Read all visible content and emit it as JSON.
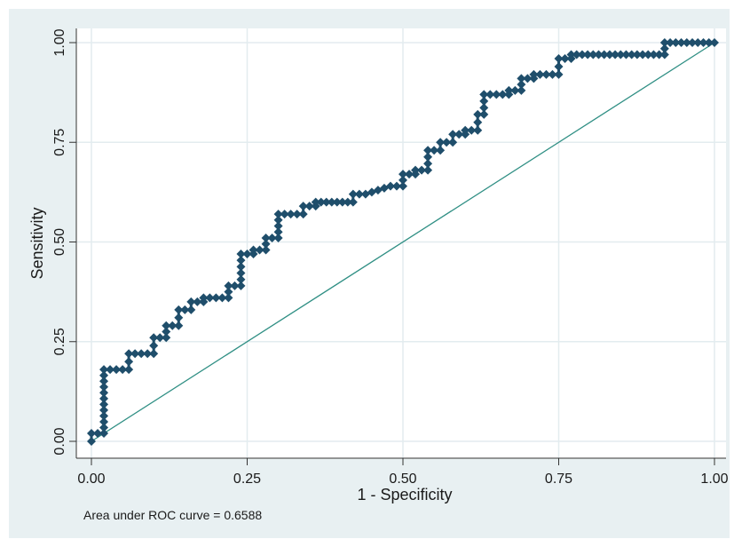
{
  "chart_data": {
    "type": "line",
    "title": "",
    "xlabel": "1 - Specificity",
    "ylabel": "Sensitivity",
    "xlim": [
      0,
      1
    ],
    "ylim": [
      0,
      1
    ],
    "xticks": [
      "0.00",
      "0.25",
      "0.50",
      "0.75",
      "1.00"
    ],
    "yticks": [
      "0.00",
      "0.25",
      "0.50",
      "0.75",
      "1.00"
    ],
    "grid": true,
    "legend": "none",
    "note": "Area under ROC curve = 0.6588",
    "colors": {
      "outer_background": "#e8f0f2",
      "plot_background": "#ffffff",
      "grid": "#e3ecef",
      "curve": "#1f4e6b",
      "reference": "#2f8f84"
    },
    "series": [
      {
        "values": [
          [
            0,
            0
          ],
          [
            0,
            0.02
          ],
          [
            0.02,
            0.02
          ],
          [
            0.02,
            0.18
          ],
          [
            0.06,
            0.18
          ],
          [
            0.06,
            0.22
          ],
          [
            0.1,
            0.22
          ],
          [
            0.1,
            0.26
          ],
          [
            0.12,
            0.26
          ],
          [
            0.12,
            0.29
          ],
          [
            0.14,
            0.29
          ],
          [
            0.14,
            0.33
          ],
          [
            0.16,
            0.33
          ],
          [
            0.16,
            0.35
          ],
          [
            0.18,
            0.35
          ],
          [
            0.18,
            0.36
          ],
          [
            0.22,
            0.36
          ],
          [
            0.22,
            0.39
          ],
          [
            0.24,
            0.39
          ],
          [
            0.24,
            0.47
          ],
          [
            0.26,
            0.47
          ],
          [
            0.26,
            0.48
          ],
          [
            0.28,
            0.48
          ],
          [
            0.28,
            0.51
          ],
          [
            0.3,
            0.51
          ],
          [
            0.3,
            0.57
          ],
          [
            0.34,
            0.57
          ],
          [
            0.34,
            0.59
          ],
          [
            0.36,
            0.59
          ],
          [
            0.36,
            0.6
          ],
          [
            0.42,
            0.6
          ],
          [
            0.42,
            0.62
          ],
          [
            0.44,
            0.62
          ],
          [
            0.48,
            0.64
          ],
          [
            0.5,
            0.64
          ],
          [
            0.5,
            0.67
          ],
          [
            0.52,
            0.67
          ],
          [
            0.52,
            0.68
          ],
          [
            0.54,
            0.68
          ],
          [
            0.54,
            0.73
          ],
          [
            0.56,
            0.73
          ],
          [
            0.56,
            0.75
          ],
          [
            0.58,
            0.75
          ],
          [
            0.58,
            0.77
          ],
          [
            0.6,
            0.77
          ],
          [
            0.6,
            0.78
          ],
          [
            0.62,
            0.78
          ],
          [
            0.62,
            0.82
          ],
          [
            0.63,
            0.82
          ],
          [
            0.63,
            0.87
          ],
          [
            0.67,
            0.87
          ],
          [
            0.67,
            0.88
          ],
          [
            0.69,
            0.88
          ],
          [
            0.69,
            0.91
          ],
          [
            0.71,
            0.91
          ],
          [
            0.71,
            0.92
          ],
          [
            0.75,
            0.92
          ],
          [
            0.75,
            0.96
          ],
          [
            0.77,
            0.96
          ],
          [
            0.77,
            0.97
          ],
          [
            0.92,
            0.97
          ],
          [
            0.92,
            1.0
          ],
          [
            1.0,
            1.0
          ]
        ]
      },
      {
        "values": [
          [
            0,
            0
          ],
          [
            1,
            1
          ]
        ]
      }
    ]
  }
}
